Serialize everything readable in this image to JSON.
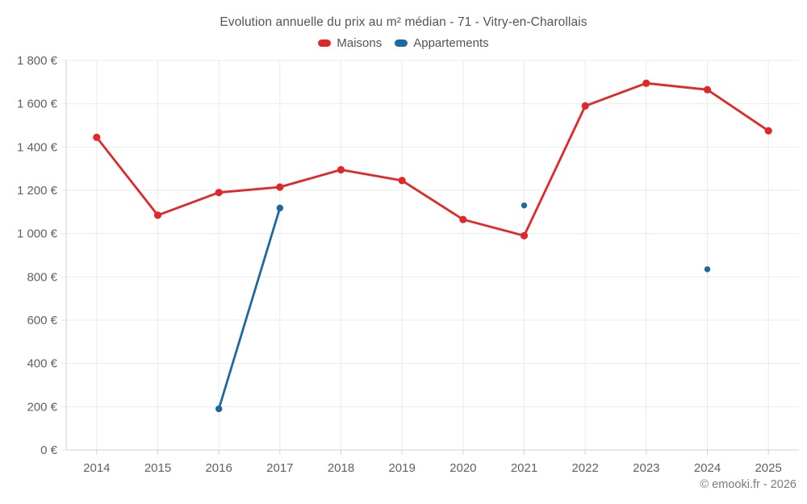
{
  "header": {
    "title": "Evolution annuelle du prix au m² médian - 71 - Vitry-en-Charollais"
  },
  "legend": {
    "items": [
      {
        "id": "maisons",
        "label": "Maisons",
        "color": "#e12828"
      },
      {
        "id": "appartements",
        "label": "Appartements",
        "color": "#1c69a0"
      }
    ]
  },
  "footer": {
    "copyright": "© emooki.fr - 2026"
  },
  "colors": {
    "maisons": "#e12828",
    "appartements": "#1c69a0",
    "gridline": "#ebebeb",
    "axis": "#d2d2d2",
    "tick_label": "#606060"
  },
  "chart_data": {
    "type": "line",
    "title": "Evolution annuelle du prix au m² médian - 71 - Vitry-en-Charollais",
    "x": [
      2014,
      2015,
      2016,
      2017,
      2018,
      2019,
      2020,
      2021,
      2022,
      2023,
      2024,
      2025
    ],
    "x_tick_labels": [
      "2014",
      "2015",
      "2016",
      "2017",
      "2018",
      "2019",
      "2020",
      "2021",
      "2022",
      "2023",
      "2024",
      "2025"
    ],
    "series": [
      {
        "name": "Maisons",
        "color": "#e12828",
        "values": [
          1445,
          1085,
          1190,
          1215,
          1295,
          1245,
          1065,
          990,
          1590,
          1695,
          1665,
          1475
        ]
      },
      {
        "name": "Appartements",
        "color": "#1c69a0",
        "values": [
          null,
          null,
          190,
          1118,
          null,
          null,
          null,
          1130,
          null,
          null,
          835,
          null
        ]
      }
    ],
    "ylim": [
      0,
      1800
    ],
    "yticks": [
      0,
      200,
      400,
      600,
      800,
      1000,
      1200,
      1400,
      1600,
      1800
    ],
    "y_tick_labels": [
      "0 €",
      "200 €",
      "400 €",
      "600 €",
      "800 €",
      "1 000 €",
      "1 200 €",
      "1 400 €",
      "1 600 €",
      "1 800 €"
    ],
    "y_unit": "€",
    "grid": true,
    "legend_position": "top"
  }
}
